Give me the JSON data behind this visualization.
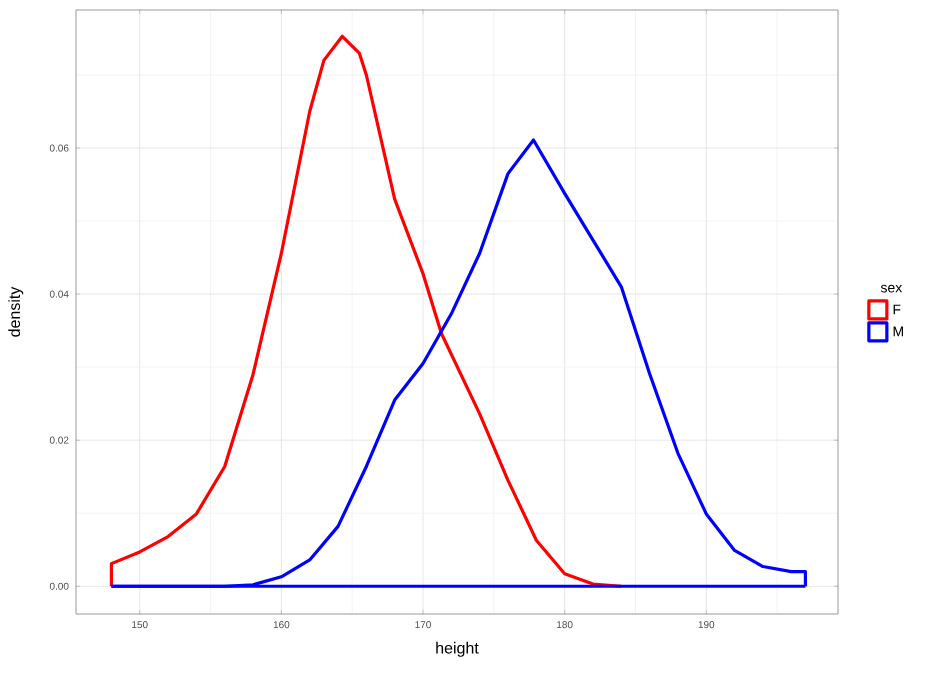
{
  "chart_data": {
    "type": "line",
    "xlabel": "height",
    "ylabel": "density",
    "legend_title": "sex",
    "xlim": [
      145.5,
      199.3
    ],
    "ylim": [
      -0.0038,
      0.0789
    ],
    "xticks": [
      150,
      160,
      170,
      180,
      190
    ],
    "yticks": [
      {
        "value": 0,
        "label": "0.00"
      },
      {
        "value": 0.02,
        "label": "0.02"
      },
      {
        "value": 0.04,
        "label": "0.04"
      },
      {
        "value": 0.06,
        "label": "0.06"
      }
    ],
    "grid": true,
    "legend": "right",
    "series": [
      {
        "name": "F",
        "color": "#ff0000",
        "x": [
          148,
          148,
          150,
          152,
          154,
          156,
          158,
          160,
          162,
          163,
          164.3,
          165.5,
          166,
          168,
          170,
          171.3,
          174,
          176,
          178,
          180,
          182,
          184
        ],
        "values": [
          0,
          0.0031,
          0.0047,
          0.0068,
          0.0099,
          0.0164,
          0.029,
          0.0456,
          0.065,
          0.072,
          0.0753,
          0.073,
          0.07,
          0.053,
          0.0428,
          0.0346,
          0.0236,
          0.0145,
          0.0063,
          0.0017,
          0.0003,
          0
        ]
      },
      {
        "name": "M",
        "color": "#0000ff",
        "x": [
          148,
          156,
          158,
          160,
          162,
          164,
          166,
          168,
          170,
          172,
          174,
          176,
          177.8,
          180,
          182,
          184,
          186,
          188,
          190,
          192,
          194,
          196,
          197,
          197
        ],
        "values": [
          0,
          0,
          0.0002,
          0.0013,
          0.0036,
          0.0082,
          0.0164,
          0.0255,
          0.0305,
          0.0373,
          0.0456,
          0.0565,
          0.0611,
          0.0538,
          0.0474,
          0.041,
          0.0291,
          0.0182,
          0.0099,
          0.0049,
          0.0027,
          0.002,
          0.002,
          0
        ]
      },
      {
        "color": "#0000ff",
        "x": [
          148,
          197
        ],
        "values": [
          0,
          0
        ]
      }
    ]
  }
}
